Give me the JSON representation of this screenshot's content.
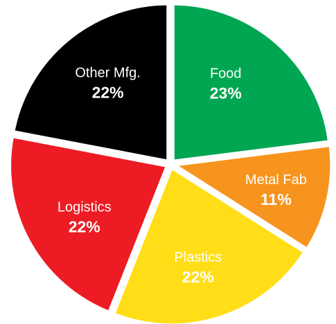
{
  "chart_data": {
    "type": "pie",
    "slices": [
      {
        "label": "Food",
        "value": 23,
        "display": "23%",
        "color": "#00a651"
      },
      {
        "label": "Metal Fab",
        "value": 11,
        "display": "11%",
        "color": "#f7941d"
      },
      {
        "label": "Plastics",
        "value": 22,
        "display": "22%",
        "color": "#ffde17"
      },
      {
        "label": "Logistics",
        "value": 22,
        "display": "22%",
        "color": "#ed1c24"
      },
      {
        "label": "Other Mfg.",
        "value": 22,
        "display": "22%",
        "color": "#000000"
      }
    ],
    "start": "12 o'clock",
    "direction": "clockwise",
    "exploded": true,
    "legend": "none",
    "label_color": "#ffffff"
  }
}
